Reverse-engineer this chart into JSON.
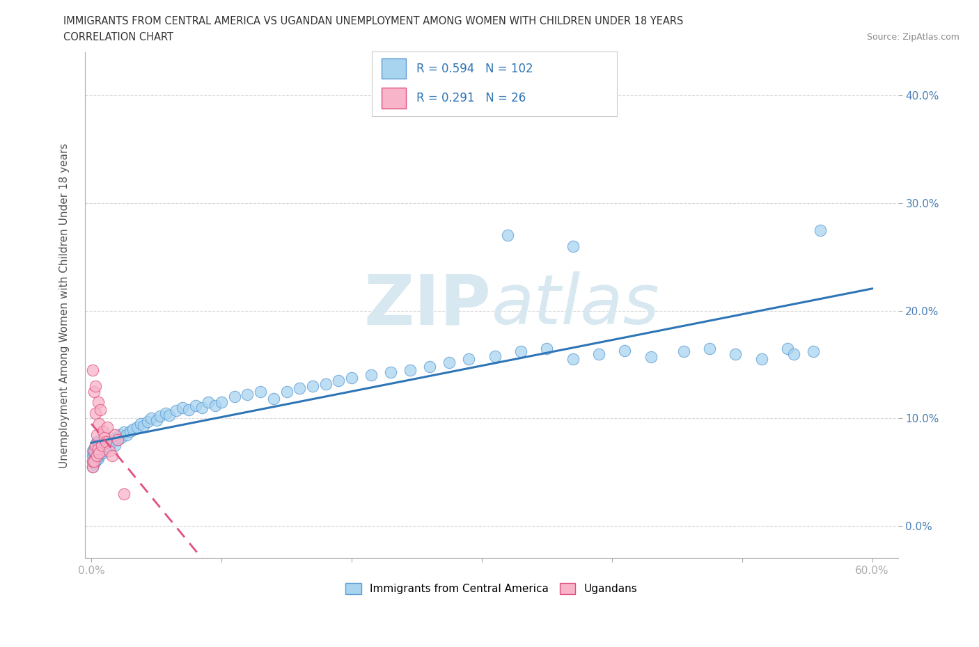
{
  "title": "IMMIGRANTS FROM CENTRAL AMERICA VS UGANDAN UNEMPLOYMENT AMONG WOMEN WITH CHILDREN UNDER 18 YEARS",
  "subtitle": "CORRELATION CHART",
  "source": "Source: ZipAtlas.com",
  "ylabel": "Unemployment Among Women with Children Under 18 years",
  "xlim": [
    -0.005,
    0.62
  ],
  "ylim": [
    -0.03,
    0.44
  ],
  "ytick_positions": [
    0.0,
    0.1,
    0.2,
    0.3,
    0.4
  ],
  "xtick_positions": [
    0.0,
    0.1,
    0.2,
    0.3,
    0.4,
    0.5,
    0.6
  ],
  "legend_labels": [
    "Immigrants from Central America",
    "Ugandans"
  ],
  "R_blue": 0.594,
  "N_blue": 102,
  "R_pink": 0.291,
  "N_pink": 26,
  "blue_color": "#a8d4f0",
  "pink_color": "#f8b4c8",
  "blue_edge_color": "#5b9bd5",
  "pink_edge_color": "#e05080",
  "blue_line_color": "#2e75b6",
  "pink_line_color": "#e05080",
  "watermark_color": "#d8e8f0",
  "background_color": "#ffffff",
  "grid_color": "#d8d8d8",
  "blue_scatter_x": [
    0.001,
    0.001,
    0.001,
    0.001,
    0.002,
    0.002,
    0.002,
    0.002,
    0.002,
    0.003,
    0.003,
    0.003,
    0.003,
    0.003,
    0.004,
    0.004,
    0.004,
    0.004,
    0.005,
    0.005,
    0.005,
    0.005,
    0.006,
    0.006,
    0.006,
    0.007,
    0.007,
    0.007,
    0.008,
    0.008,
    0.009,
    0.009,
    0.01,
    0.01,
    0.011,
    0.011,
    0.012,
    0.013,
    0.014,
    0.015,
    0.016,
    0.017,
    0.018,
    0.019,
    0.02,
    0.021,
    0.022,
    0.023,
    0.025,
    0.027,
    0.03,
    0.032,
    0.035,
    0.038,
    0.04,
    0.043,
    0.046,
    0.05,
    0.053,
    0.057,
    0.06,
    0.065,
    0.07,
    0.075,
    0.08,
    0.085,
    0.09,
    0.095,
    0.1,
    0.11,
    0.12,
    0.13,
    0.14,
    0.15,
    0.16,
    0.17,
    0.18,
    0.19,
    0.2,
    0.215,
    0.23,
    0.245,
    0.26,
    0.275,
    0.29,
    0.31,
    0.33,
    0.35,
    0.37,
    0.39,
    0.41,
    0.43,
    0.455,
    0.475,
    0.495,
    0.515,
    0.535,
    0.555,
    0.37,
    0.32,
    0.54,
    0.56
  ],
  "blue_scatter_y": [
    0.055,
    0.06,
    0.065,
    0.07,
    0.058,
    0.062,
    0.067,
    0.072,
    0.068,
    0.06,
    0.065,
    0.07,
    0.075,
    0.068,
    0.062,
    0.067,
    0.072,
    0.078,
    0.063,
    0.068,
    0.073,
    0.078,
    0.065,
    0.07,
    0.075,
    0.067,
    0.072,
    0.077,
    0.07,
    0.075,
    0.068,
    0.073,
    0.07,
    0.075,
    0.072,
    0.077,
    0.075,
    0.078,
    0.073,
    0.076,
    0.078,
    0.08,
    0.075,
    0.082,
    0.08,
    0.083,
    0.085,
    0.082,
    0.087,
    0.085,
    0.088,
    0.09,
    0.092,
    0.095,
    0.093,
    0.097,
    0.1,
    0.098,
    0.102,
    0.105,
    0.103,
    0.107,
    0.11,
    0.108,
    0.112,
    0.11,
    0.115,
    0.112,
    0.115,
    0.12,
    0.122,
    0.125,
    0.118,
    0.125,
    0.128,
    0.13,
    0.132,
    0.135,
    0.138,
    0.14,
    0.143,
    0.145,
    0.148,
    0.152,
    0.155,
    0.158,
    0.162,
    0.165,
    0.155,
    0.16,
    0.163,
    0.157,
    0.162,
    0.165,
    0.16,
    0.155,
    0.165,
    0.162,
    0.26,
    0.27,
    0.16,
    0.275
  ],
  "pink_scatter_x": [
    0.001,
    0.001,
    0.001,
    0.002,
    0.002,
    0.002,
    0.003,
    0.003,
    0.003,
    0.004,
    0.004,
    0.005,
    0.005,
    0.006,
    0.006,
    0.007,
    0.008,
    0.009,
    0.01,
    0.011,
    0.012,
    0.014,
    0.016,
    0.018,
    0.02,
    0.025
  ],
  "pink_scatter_y": [
    0.055,
    0.06,
    0.145,
    0.07,
    0.125,
    0.06,
    0.075,
    0.105,
    0.13,
    0.085,
    0.065,
    0.072,
    0.115,
    0.068,
    0.095,
    0.108,
    0.075,
    0.088,
    0.082,
    0.078,
    0.092,
    0.07,
    0.065,
    0.085,
    0.08,
    0.03
  ]
}
